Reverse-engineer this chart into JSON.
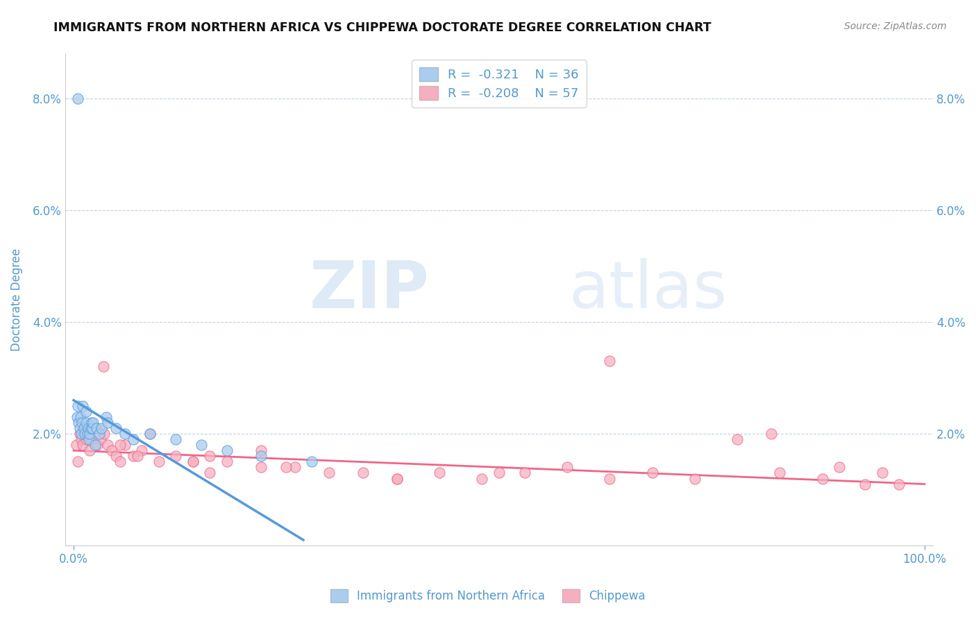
{
  "title": "IMMIGRANTS FROM NORTHERN AFRICA VS CHIPPEWA DOCTORATE DEGREE CORRELATION CHART",
  "source": "Source: ZipAtlas.com",
  "ylabel": "Doctorate Degree",
  "legend_label_1": "Immigrants from Northern Africa",
  "legend_label_2": "Chippewa",
  "legend_R1": "R =  -0.321",
  "legend_N1": "N = 36",
  "legend_R2": "R =  -0.208",
  "legend_N2": "N = 57",
  "color_blue": "#aaccee",
  "color_pink": "#f5b0c0",
  "line_color_blue": "#5599dd",
  "line_color_pink": "#ee6688",
  "text_color": "#5599cc",
  "background_color": "#ffffff",
  "xlim": [
    -0.01,
    1.01
  ],
  "ylim": [
    0.0,
    0.088
  ],
  "xtick_positions": [
    0.0,
    1.0
  ],
  "xtick_labels": [
    "0.0%",
    "100.0%"
  ],
  "ytick_values": [
    0.02,
    0.04,
    0.06,
    0.08
  ],
  "ytick_labels": [
    "2.0%",
    "4.0%",
    "6.0%",
    "8.0%"
  ],
  "watermark_zip": "ZIP",
  "watermark_atlas": "atlas",
  "blue_points_x": [
    0.004,
    0.005,
    0.006,
    0.007,
    0.008,
    0.009,
    0.01,
    0.011,
    0.012,
    0.013,
    0.015,
    0.015,
    0.016,
    0.017,
    0.018,
    0.019,
    0.02,
    0.021,
    0.022,
    0.023,
    0.025,
    0.027,
    0.03,
    0.033,
    0.038,
    0.04,
    0.05,
    0.06,
    0.07,
    0.09,
    0.12,
    0.15,
    0.18,
    0.22,
    0.28,
    0.005
  ],
  "blue_points_y": [
    0.023,
    0.025,
    0.022,
    0.021,
    0.023,
    0.02,
    0.022,
    0.025,
    0.021,
    0.02,
    0.022,
    0.024,
    0.02,
    0.021,
    0.019,
    0.02,
    0.021,
    0.022,
    0.021,
    0.022,
    0.018,
    0.021,
    0.02,
    0.021,
    0.023,
    0.022,
    0.021,
    0.02,
    0.019,
    0.02,
    0.019,
    0.018,
    0.017,
    0.016,
    0.015,
    0.08
  ],
  "blue_line_x": [
    0.0,
    0.27
  ],
  "blue_line_y": [
    0.026,
    0.001
  ],
  "pink_points_x": [
    0.003,
    0.005,
    0.007,
    0.009,
    0.011,
    0.013,
    0.015,
    0.017,
    0.019,
    0.021,
    0.025,
    0.028,
    0.032,
    0.036,
    0.04,
    0.045,
    0.05,
    0.055,
    0.06,
    0.07,
    0.08,
    0.09,
    0.1,
    0.12,
    0.14,
    0.16,
    0.18,
    0.22,
    0.26,
    0.3,
    0.34,
    0.38,
    0.43,
    0.48,
    0.53,
    0.58,
    0.63,
    0.68,
    0.73,
    0.78,
    0.83,
    0.88,
    0.93,
    0.97,
    0.14,
    0.25,
    0.5,
    0.63,
    0.82,
    0.9,
    0.95,
    0.035,
    0.055,
    0.075,
    0.16,
    0.22,
    0.38
  ],
  "pink_points_y": [
    0.018,
    0.015,
    0.02,
    0.019,
    0.018,
    0.02,
    0.019,
    0.021,
    0.017,
    0.019,
    0.021,
    0.018,
    0.019,
    0.02,
    0.018,
    0.017,
    0.016,
    0.015,
    0.018,
    0.016,
    0.017,
    0.02,
    0.015,
    0.016,
    0.015,
    0.016,
    0.015,
    0.014,
    0.014,
    0.013,
    0.013,
    0.012,
    0.013,
    0.012,
    0.013,
    0.014,
    0.012,
    0.013,
    0.012,
    0.019,
    0.013,
    0.012,
    0.011,
    0.011,
    0.015,
    0.014,
    0.013,
    0.033,
    0.02,
    0.014,
    0.013,
    0.032,
    0.018,
    0.016,
    0.013,
    0.017,
    0.012
  ],
  "pink_line_x": [
    0.0,
    1.0
  ],
  "pink_line_y": [
    0.017,
    0.011
  ]
}
